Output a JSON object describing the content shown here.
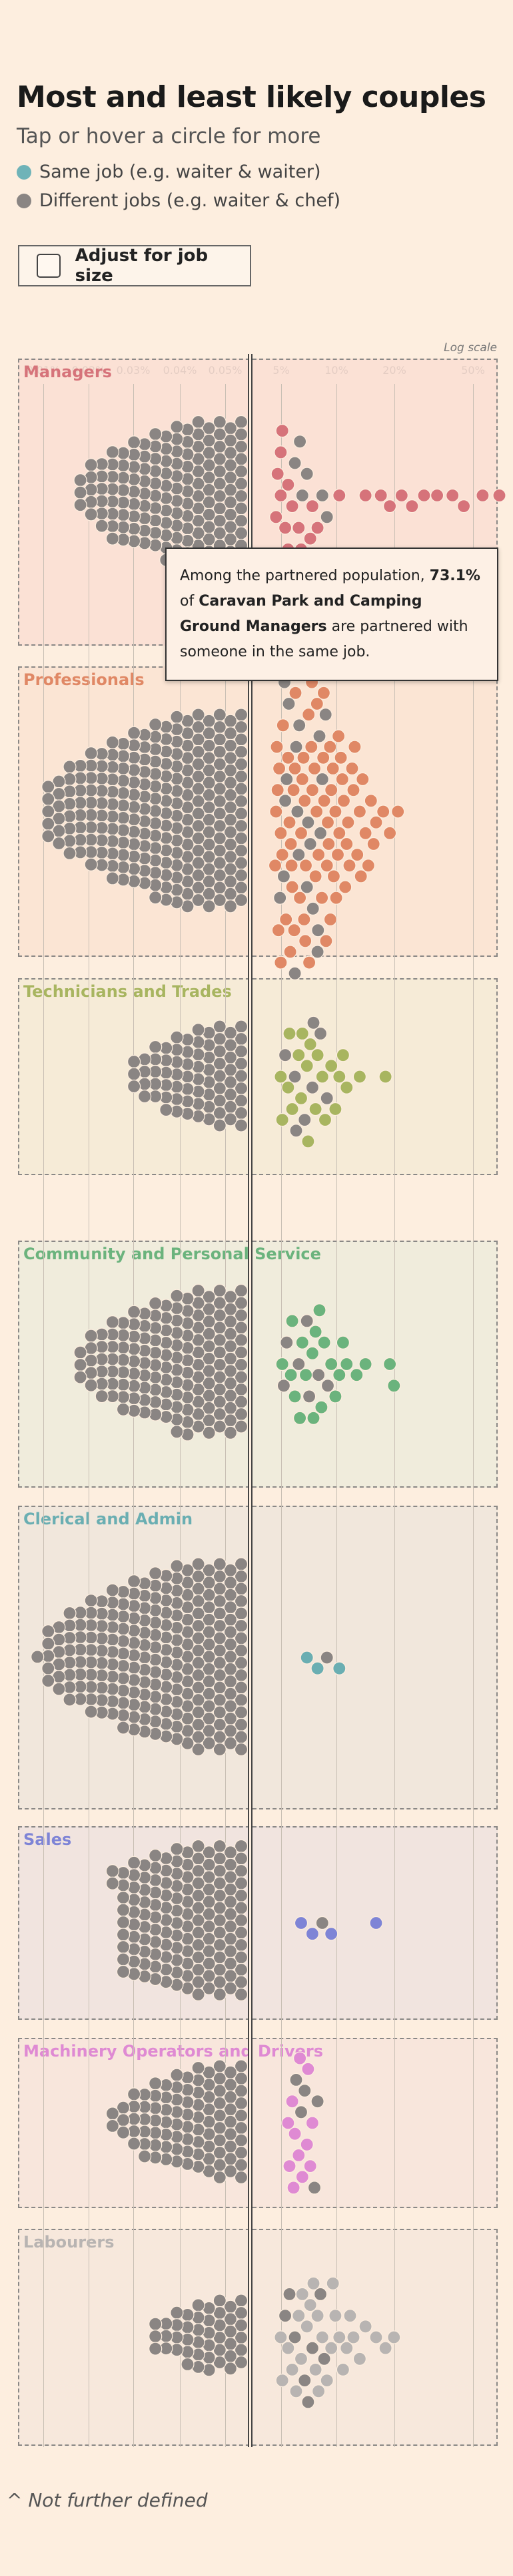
{
  "title": "Most and least likely couples",
  "subtitle": "Tap or hover a circle for more",
  "legend": [
    {
      "label": "Same job (e.g. waiter & waiter)",
      "color": "#6fb3b8"
    },
    {
      "label": "Different jobs (e.g. waiter & chef)",
      "color": "#8a8583"
    }
  ],
  "toggle": {
    "label": "Adjust for job size",
    "checked": false
  },
  "scale_note": "Log scale",
  "tooltip": {
    "prefix": "Among the partnered population,",
    "value": "73.1%",
    "of": "of",
    "job": "Caravan Park and Camping Ground Managers",
    "suffix": "are partnered with someone in the same job."
  },
  "footnote": "^ Not further defined",
  "chart_data": {
    "type": "scatter",
    "subtype": "beeswarm",
    "x_scale": "log",
    "x_unit": "% of partnered population",
    "x_ticks_left": [
      "0.01%",
      "0.02%",
      "0.03%",
      "0.04%",
      "0.05%"
    ],
    "x_ticks_right": [
      "5%",
      "10%",
      "20%",
      "50%"
    ],
    "gridlines": true,
    "colors": {
      "different": "#8a8583"
    },
    "groups": [
      {
        "name": "Managers",
        "color": "#d6737a",
        "panel_bg": "#fbdfd4",
        "right_points": [
          5.5,
          6.3,
          7.1,
          5.2,
          8.0,
          9.0,
          6.0,
          5.3,
          7.5,
          6.8,
          5.8,
          6.5,
          5.5,
          7.0,
          9.5,
          11.0,
          15.0,
          18.0,
          20.0,
          23.0,
          26.0,
          30.0,
          35.0,
          42.0,
          48.0,
          60.0,
          73.1,
          6.0,
          7.8,
          5.4,
          8.5,
          5.6,
          6.9,
          7.2
        ],
        "left_count": 300
      },
      {
        "name": "Professionals",
        "color": "#e08865",
        "panel_bg": "#fbe4d3",
        "right_points": [
          5.2,
          5.5,
          5.8,
          6.1,
          6.4,
          6.7,
          7.0,
          7.3,
          7.6,
          8.0,
          8.4,
          8.8,
          9.2,
          9.6,
          10.0,
          10.5,
          11.0,
          11.6,
          12.2,
          13.0,
          14.0,
          15.0,
          16.0,
          17.0,
          18.5,
          20.0,
          22.0,
          5.3,
          5.6,
          5.9,
          6.2,
          6.5,
          6.8,
          7.1,
          7.4,
          7.8,
          8.2,
          8.6,
          9.0,
          9.5,
          10.2,
          10.8,
          11.4,
          12.0,
          12.8,
          13.6,
          14.5,
          15.5,
          16.5,
          5.4,
          5.7,
          6.0,
          6.3,
          6.6,
          6.9,
          7.2,
          7.5,
          7.9,
          8.3,
          8.7,
          9.1,
          9.7,
          10.3,
          11.2,
          12.4,
          13.2,
          14.2,
          5.25,
          5.45,
          5.65,
          5.85,
          6.05,
          6.25,
          6.45,
          6.85,
          7.25,
          7.65,
          8.05,
          8.45,
          8.95,
          9.35,
          9.85,
          10.6,
          11.8,
          5.15,
          5.35,
          5.75,
          6.15,
          6.55,
          6.95,
          7.35,
          7.95,
          8.55,
          9.15,
          9.9,
          10.9,
          5.5,
          6.0,
          6.5,
          7.0,
          7.7,
          8.5,
          9.4
        ],
        "left_count": 460
      },
      {
        "name": "Technicians and Trades",
        "color": "#a8b560",
        "panel_bg": "#f5ebd6",
        "right_points": [
          5.5,
          6.0,
          6.5,
          7.0,
          7.5,
          8.0,
          8.5,
          9.0,
          9.5,
          10.0,
          11.0,
          12.0,
          14.0,
          19.0,
          5.8,
          6.3,
          6.8,
          7.3,
          7.8,
          8.3,
          8.8,
          9.3,
          10.5,
          11.5,
          5.6,
          6.1,
          6.6,
          7.1,
          7.6,
          8.1
        ],
        "left_count": 150
      },
      {
        "name": "Community and Personal Service",
        "color": "#6bb37d",
        "panel_bg": "#eeecdc",
        "right_points": [
          5.6,
          6.2,
          6.8,
          7.4,
          8.0,
          8.6,
          9.2,
          10.0,
          11.0,
          12.0,
          13.5,
          15.0,
          20.0,
          21.0,
          5.9,
          6.5,
          7.1,
          7.7,
          8.3,
          8.9,
          9.6,
          10.5,
          11.5,
          5.7,
          6.3,
          6.9,
          7.5,
          8.1,
          8.7
        ],
        "left_count": 190
      },
      {
        "name": "Clerical and Admin",
        "color": "#6aaeb2",
        "panel_bg": "#f0e6dc",
        "right_points": [
          7.5,
          8.5,
          9.5,
          11.0
        ],
        "left_count": 330
      },
      {
        "name": "Sales",
        "color": "#7e84d6",
        "panel_bg": "#f0e3e0",
        "right_points": [
          7.0,
          8.0,
          9.0,
          10.0,
          17.0
        ],
        "left_count": 140
      },
      {
        "name": "Machinery Operators and Drivers",
        "color": "#df8ad3",
        "panel_bg": "#f8e5dc",
        "right_points": [
          6.0,
          6.5,
          7.0,
          7.5,
          8.0,
          8.5,
          6.3,
          6.8,
          7.3,
          7.8,
          6.1,
          6.6,
          7.1,
          7.6,
          8.2,
          6.4,
          6.9
        ],
        "left_count": 130
      },
      {
        "name": "Labourers",
        "color": "#b8b4b2",
        "panel_bg": "#f6e8dc",
        "right_points": [
          5.5,
          6.0,
          6.5,
          7.0,
          7.5,
          8.0,
          8.5,
          9.0,
          10.0,
          11.0,
          12.0,
          13.0,
          14.0,
          15.0,
          17.0,
          19.0,
          21.0,
          5.8,
          6.3,
          6.8,
          7.3,
          7.8,
          8.3,
          8.8,
          9.5,
          10.5,
          11.5,
          12.5,
          5.6,
          6.1,
          6.6,
          7.1,
          7.6,
          8.1,
          8.6,
          9.2,
          10.2
        ],
        "left_count": 55
      }
    ]
  }
}
